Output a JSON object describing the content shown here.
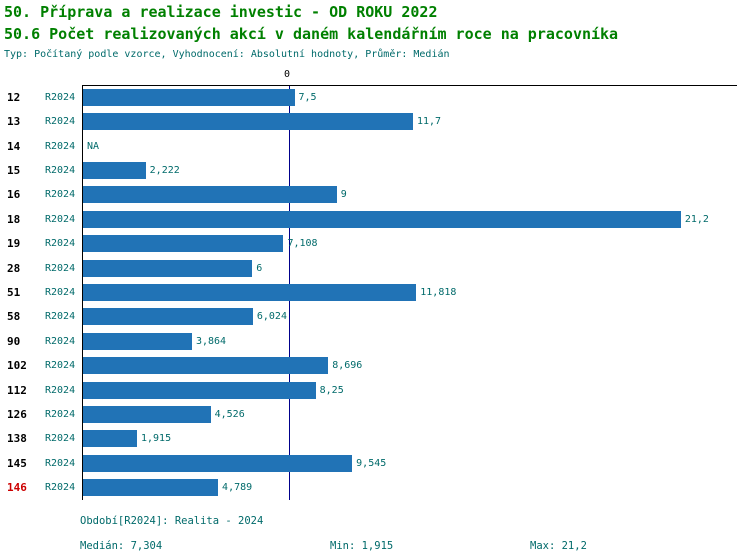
{
  "header": {
    "title1": "50. Příprava a realizace investic - OD ROKU 2022",
    "title2": "50.6 Počet realizovaných akcí v daném kalendářním roce na pracovníka",
    "subtitle": "Typ: Počítaný podle vzorce, Vyhodnocení: Absolutní hodnoty, Průměr: Medián"
  },
  "chart_data": {
    "type": "bar",
    "orientation": "horizontal",
    "title": "50.6 Počet realizovaných akcí v daném kalendářním roce na pracovníka",
    "x_axis_zero_label": "0",
    "xlim": [
      0,
      23.2
    ],
    "grid": false,
    "median_value": 7.304,
    "bar_color": "#2173b6",
    "highlight_color": "#cc0000",
    "series_period": "R2024",
    "categories": [
      "12",
      "13",
      "14",
      "15",
      "16",
      "18",
      "19",
      "28",
      "51",
      "58",
      "90",
      "102",
      "112",
      "126",
      "138",
      "145",
      "146"
    ],
    "rows": [
      {
        "id": "12",
        "period": "R2024",
        "value": 7.5,
        "label": "7,5",
        "highlight": false
      },
      {
        "id": "13",
        "period": "R2024",
        "value": 11.7,
        "label": "11,7",
        "highlight": false
      },
      {
        "id": "14",
        "period": "R2024",
        "value": null,
        "label": "NA",
        "highlight": false
      },
      {
        "id": "15",
        "period": "R2024",
        "value": 2.222,
        "label": "2,222",
        "highlight": false
      },
      {
        "id": "16",
        "period": "R2024",
        "value": 9,
        "label": "9",
        "highlight": false
      },
      {
        "id": "18",
        "period": "R2024",
        "value": 21.2,
        "label": "21,2",
        "highlight": false
      },
      {
        "id": "19",
        "period": "R2024",
        "value": 7.108,
        "label": "7,108",
        "highlight": false
      },
      {
        "id": "28",
        "period": "R2024",
        "value": 6,
        "label": "6",
        "highlight": false
      },
      {
        "id": "51",
        "period": "R2024",
        "value": 11.818,
        "label": "11,818",
        "highlight": false
      },
      {
        "id": "58",
        "period": "R2024",
        "value": 6.024,
        "label": "6,024",
        "highlight": false
      },
      {
        "id": "90",
        "period": "R2024",
        "value": 3.864,
        "label": "3,864",
        "highlight": false
      },
      {
        "id": "102",
        "period": "R2024",
        "value": 8.696,
        "label": "8,696",
        "highlight": false
      },
      {
        "id": "112",
        "period": "R2024",
        "value": 8.25,
        "label": "8,25",
        "highlight": false
      },
      {
        "id": "126",
        "period": "R2024",
        "value": 4.526,
        "label": "4,526",
        "highlight": false
      },
      {
        "id": "138",
        "period": "R2024",
        "value": 1.915,
        "label": "1,915",
        "highlight": false
      },
      {
        "id": "145",
        "period": "R2024",
        "value": 9.545,
        "label": "9,545",
        "highlight": false
      },
      {
        "id": "146",
        "period": "R2024",
        "value": 4.789,
        "label": "4,789",
        "highlight": true
      }
    ]
  },
  "footer": {
    "period": "Období[R2024]: Realita - 2024",
    "median": "Medián: 7,304",
    "min": "Min: 1,915",
    "max": "Max: 21,2"
  }
}
